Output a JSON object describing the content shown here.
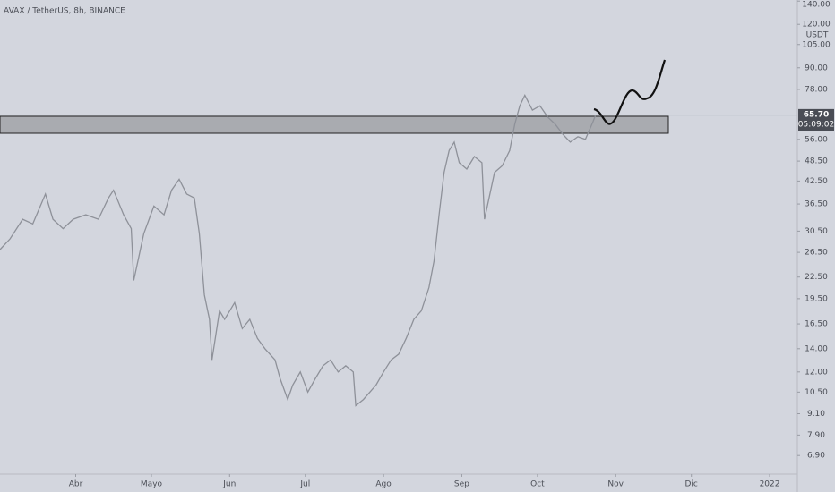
{
  "chart_data": {
    "type": "line",
    "title": "AVAX / TetherUS, 8h, BINANCE",
    "y_unit": "USDT",
    "log_scale": true,
    "grid": false,
    "color": "#8e9199",
    "x": [
      61,
      65,
      70,
      74,
      79,
      82,
      86,
      90,
      95,
      100,
      104,
      106,
      110,
      113,
      114,
      118,
      122,
      126,
      129,
      132,
      135,
      138,
      140,
      142,
      144,
      145,
      148,
      150,
      154,
      157,
      160,
      163,
      166,
      170,
      172,
      175,
      177,
      180,
      183,
      186,
      189,
      192,
      195,
      198,
      201,
      202,
      205,
      210,
      213,
      216,
      219,
      222,
      225,
      228,
      231,
      233,
      235,
      237,
      239,
      241,
      243,
      246,
      249,
      252,
      253,
      257,
      260,
      263,
      265,
      267,
      269,
      272,
      275,
      278,
      281,
      284,
      287,
      290,
      293,
      296,
      297
    ],
    "values": [
      27,
      29,
      33,
      32,
      39,
      33,
      31,
      33,
      34,
      33,
      38,
      40,
      34,
      31,
      22,
      30,
      36,
      34,
      40,
      43,
      39,
      38,
      30,
      20,
      17,
      13,
      18,
      17,
      19,
      16,
      17,
      15,
      14,
      13,
      11.5,
      10,
      11,
      12,
      10.5,
      11.5,
      12.5,
      13,
      12,
      12.5,
      12,
      9.6,
      10,
      11,
      12,
      13,
      13.5,
      15,
      17,
      18,
      21,
      25,
      34,
      45,
      52,
      55,
      48,
      46,
      50,
      48,
      33,
      45,
      47,
      52,
      62,
      70,
      75,
      68,
      70,
      65,
      62,
      58,
      55,
      57,
      56,
      63,
      65.7
    ],
    "last_price_label": "65.70",
    "countdown": "05:09:02",
    "xlim": [
      61,
      377
    ],
    "xticks": [
      {
        "value": 91,
        "label": "Abr"
      },
      {
        "value": 121,
        "label": "Mayo"
      },
      {
        "value": 152,
        "label": "Jun"
      },
      {
        "value": 182,
        "label": "Jul"
      },
      {
        "value": 213,
        "label": "Ago"
      },
      {
        "value": 244,
        "label": "Sep"
      },
      {
        "value": 274,
        "label": "Oct"
      },
      {
        "value": 305,
        "label": "Nov"
      },
      {
        "value": 335,
        "label": "Dic"
      },
      {
        "value": 366,
        "label": "2022"
      }
    ],
    "ylim": [
      6.1,
      141
    ],
    "yticks": [
      {
        "value": 140,
        "label": "140.00"
      },
      {
        "value": 120,
        "label": "120.00"
      },
      {
        "value": 105,
        "label": "105.00"
      },
      {
        "value": 90,
        "label": "90.00"
      },
      {
        "value": 78,
        "label": "78.00"
      },
      {
        "value": 56,
        "label": "56.00"
      },
      {
        "value": 48.5,
        "label": "48.50"
      },
      {
        "value": 42.5,
        "label": "42.50"
      },
      {
        "value": 36.5,
        "label": "36.50"
      },
      {
        "value": 30.5,
        "label": "30.50"
      },
      {
        "value": 26.5,
        "label": "26.50"
      },
      {
        "value": 22.5,
        "label": "22.50"
      },
      {
        "value": 19.5,
        "label": "19.50"
      },
      {
        "value": 16.5,
        "label": "16.50"
      },
      {
        "value": 14,
        "label": "14.00"
      },
      {
        "value": 12,
        "label": "12.00"
      },
      {
        "value": 10.5,
        "label": "10.50"
      },
      {
        "value": 9.1,
        "label": "9.10"
      },
      {
        "value": 7.9,
        "label": "7.90"
      },
      {
        "value": 6.9,
        "label": "6.90"
      }
    ]
  }
}
